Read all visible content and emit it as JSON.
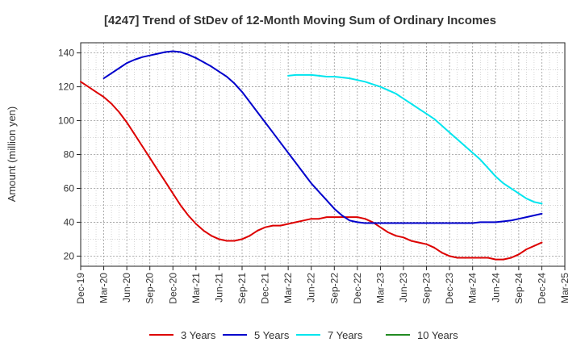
{
  "chart_data": {
    "type": "line",
    "title": "[4247]  Trend of StDev of 12-Month Moving Sum of Ordinary Incomes",
    "xlabel": "",
    "ylabel": "Amount (million yen)",
    "ylim": [
      14,
      146
    ],
    "yticks": [
      20,
      40,
      60,
      80,
      100,
      120,
      140
    ],
    "x_tick_labels": [
      "Dec-19",
      "Mar-20",
      "Jun-20",
      "Sep-20",
      "Dec-20",
      "Mar-21",
      "Jun-21",
      "Sep-21",
      "Dec-21",
      "Mar-22",
      "Jun-22",
      "Sep-22",
      "Dec-22",
      "Mar-23",
      "Jun-23",
      "Sep-23",
      "Dec-23",
      "Mar-24",
      "Jun-24",
      "Sep-24",
      "Dec-24",
      "Mar-25"
    ],
    "grid": true,
    "legend_position": "bottom",
    "series": [
      {
        "name": "3 Years",
        "color": "#dd0000",
        "x": [
          "Dec-19",
          "Jan-20",
          "Feb-20",
          "Mar-20",
          "Apr-20",
          "May-20",
          "Jun-20",
          "Jul-20",
          "Aug-20",
          "Sep-20",
          "Oct-20",
          "Nov-20",
          "Dec-20",
          "Jan-21",
          "Feb-21",
          "Mar-21",
          "Apr-21",
          "May-21",
          "Jun-21",
          "Jul-21",
          "Aug-21",
          "Sep-21",
          "Oct-21",
          "Nov-21",
          "Dec-21",
          "Jan-22",
          "Feb-22",
          "Mar-22",
          "Apr-22",
          "May-22",
          "Jun-22",
          "Jul-22",
          "Aug-22",
          "Sep-22",
          "Oct-22",
          "Nov-22",
          "Dec-22",
          "Jan-23",
          "Feb-23",
          "Mar-23",
          "Apr-23",
          "May-23",
          "Jun-23",
          "Jul-23",
          "Aug-23",
          "Sep-23",
          "Oct-23",
          "Nov-23",
          "Dec-23",
          "Jan-24",
          "Feb-24",
          "Mar-24",
          "Apr-24",
          "May-24",
          "Jun-24",
          "Jul-24",
          "Aug-24",
          "Sep-24",
          "Oct-24",
          "Nov-24",
          "Dec-24"
        ],
        "values": [
          123,
          120,
          117,
          114,
          110,
          105,
          99,
          92,
          85,
          78,
          71,
          64,
          57,
          50,
          44,
          39,
          35,
          32,
          30,
          29,
          29,
          30,
          32,
          35,
          37,
          38,
          38,
          39,
          40,
          41,
          42,
          42,
          43,
          43,
          43,
          43,
          43,
          42,
          40,
          37,
          34,
          32,
          31,
          29,
          28,
          27,
          25,
          22,
          20,
          19,
          19,
          19,
          19,
          19,
          18,
          18,
          19,
          21,
          24,
          26,
          28
        ]
      },
      {
        "name": "5 Years",
        "color": "#0000cc",
        "x": [
          "Dec-19",
          "Jan-20",
          "Feb-20",
          "Mar-20",
          "Apr-20",
          "May-20",
          "Jun-20",
          "Jul-20",
          "Aug-20",
          "Sep-20",
          "Oct-20",
          "Nov-20",
          "Dec-20",
          "Jan-21",
          "Feb-21",
          "Mar-21",
          "Apr-21",
          "May-21",
          "Jun-21",
          "Jul-21",
          "Aug-21",
          "Sep-21",
          "Oct-21",
          "Nov-21",
          "Dec-21",
          "Jan-22",
          "Feb-22",
          "Mar-22",
          "Apr-22",
          "May-22",
          "Jun-22",
          "Jul-22",
          "Aug-22",
          "Sep-22",
          "Oct-22",
          "Nov-22",
          "Dec-22",
          "Jan-23",
          "Feb-23",
          "Mar-23",
          "Apr-23",
          "May-23",
          "Jun-23",
          "Jul-23",
          "Aug-23",
          "Sep-23",
          "Oct-23",
          "Nov-23",
          "Dec-23",
          "Jan-24",
          "Feb-24",
          "Mar-24",
          "Apr-24",
          "May-24",
          "Jun-24",
          "Jul-24",
          "Aug-24",
          "Sep-24",
          "Oct-24",
          "Nov-24",
          "Dec-24"
        ],
        "values": [
          null,
          null,
          null,
          125,
          128,
          131,
          134,
          136,
          137.5,
          138.5,
          139.5,
          140.5,
          141,
          140.5,
          139,
          137,
          134.5,
          132,
          129,
          126,
          122,
          117,
          111,
          105,
          99,
          93,
          87,
          81,
          75,
          69,
          63,
          58,
          53,
          48,
          44,
          41,
          40,
          39.5,
          39.5,
          39.5,
          39.5,
          39.5,
          39.5,
          39.5,
          39.5,
          39.5,
          39.5,
          39.5,
          39.5,
          39.5,
          39.5,
          39.5,
          40,
          40,
          40,
          40.5,
          41,
          42,
          43,
          44,
          45
        ]
      },
      {
        "name": "7 Years",
        "color": "#00e5ee",
        "x": [
          "Dec-19",
          "Jan-20",
          "Feb-20",
          "Mar-20",
          "Apr-20",
          "May-20",
          "Jun-20",
          "Jul-20",
          "Aug-20",
          "Sep-20",
          "Oct-20",
          "Nov-20",
          "Dec-20",
          "Jan-21",
          "Feb-21",
          "Mar-21",
          "Apr-21",
          "May-21",
          "Jun-21",
          "Jul-21",
          "Aug-21",
          "Sep-21",
          "Oct-21",
          "Nov-21",
          "Dec-21",
          "Jan-22",
          "Feb-22",
          "Mar-22",
          "Apr-22",
          "May-22",
          "Jun-22",
          "Jul-22",
          "Aug-22",
          "Sep-22",
          "Oct-22",
          "Nov-22",
          "Dec-22",
          "Jan-23",
          "Feb-23",
          "Mar-23",
          "Apr-23",
          "May-23",
          "Jun-23",
          "Jul-23",
          "Aug-23",
          "Sep-23",
          "Oct-23",
          "Nov-23",
          "Dec-23",
          "Jan-24",
          "Feb-24",
          "Mar-24",
          "Apr-24",
          "May-24",
          "Jun-24",
          "Jul-24",
          "Aug-24",
          "Sep-24",
          "Oct-24",
          "Nov-24",
          "Dec-24"
        ],
        "values": [
          null,
          null,
          null,
          null,
          null,
          null,
          null,
          null,
          null,
          null,
          null,
          null,
          null,
          null,
          null,
          null,
          null,
          null,
          null,
          null,
          null,
          null,
          null,
          null,
          null,
          null,
          null,
          126.5,
          127,
          127,
          127,
          126.5,
          126,
          126,
          125.5,
          125,
          124,
          123,
          121.5,
          120,
          118,
          116,
          113,
          110,
          107,
          104,
          101,
          97,
          93,
          89,
          85,
          81,
          77,
          72,
          67,
          63,
          60,
          57,
          54,
          52,
          51
        ]
      },
      {
        "name": "10 Years",
        "color": "#228b22",
        "x": [],
        "values": []
      }
    ]
  }
}
